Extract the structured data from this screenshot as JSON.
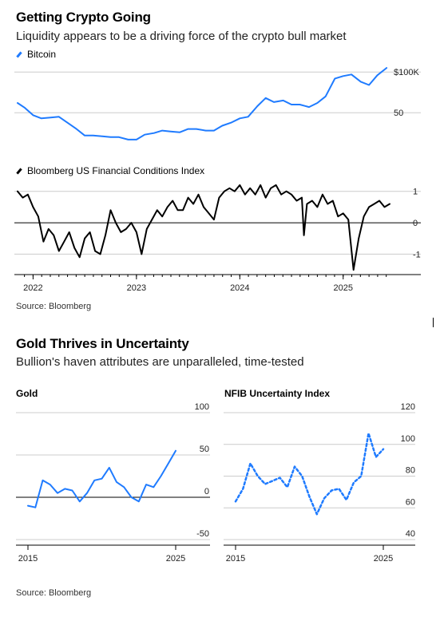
{
  "top": {
    "title": "Getting Crypto Going",
    "subtitle": "Liquidity appears to be a driving force of the crypto bull market",
    "source": "Source: Bloomberg"
  },
  "bottom": {
    "title": "Gold Thrives in Uncertainty",
    "subtitle": "Bullion's haven attributes are unparalleled, time-tested",
    "source": "Source: Bloomberg"
  },
  "colors": {
    "bitcoin": "#1f7bff",
    "fci": "#000000",
    "gold": "#1f7bff",
    "nfib": "#1f7bff",
    "grid": "#cccccc"
  },
  "chart_data": [
    {
      "type": "line",
      "legend": "Bitcoin",
      "y_tick_labels": [
        "$100K",
        "50"
      ],
      "y_ticks": [
        100,
        50
      ],
      "ylim": [
        10,
        110
      ],
      "xlim": [
        2021.85,
        2025.45
      ],
      "series": [
        {
          "name": "Bitcoin",
          "x": [
            2021.85,
            2021.92,
            2022.0,
            2022.08,
            2022.17,
            2022.25,
            2022.33,
            2022.42,
            2022.5,
            2022.58,
            2022.67,
            2022.75,
            2022.83,
            2022.92,
            2023.0,
            2023.08,
            2023.17,
            2023.25,
            2023.33,
            2023.42,
            2023.5,
            2023.58,
            2023.67,
            2023.75,
            2023.83,
            2023.92,
            2024.0,
            2024.08,
            2024.17,
            2024.25,
            2024.33,
            2024.42,
            2024.5,
            2024.58,
            2024.67,
            2024.75,
            2024.83,
            2024.92,
            2025.0,
            2025.08,
            2025.17,
            2025.25,
            2025.33,
            2025.42
          ],
          "y": [
            62,
            56,
            47,
            43,
            44,
            45,
            38,
            30,
            22,
            22,
            21,
            20,
            20,
            17,
            17,
            23,
            25,
            28,
            27,
            26,
            30,
            30,
            28,
            28,
            34,
            38,
            43,
            45,
            58,
            68,
            63,
            65,
            60,
            60,
            57,
            62,
            70,
            92,
            95,
            97,
            88,
            84,
            96,
            105
          ]
        }
      ]
    },
    {
      "type": "line",
      "legend": "Bloomberg US Financial Conditions Index",
      "y_tick_labels": [
        "1",
        "0",
        "-1"
      ],
      "y_ticks": [
        1,
        0,
        -1
      ],
      "ylim": [
        -1.6,
        1.4
      ],
      "xlim": [
        2021.85,
        2025.45
      ],
      "x_tick_labels": [
        "2022",
        "2023",
        "2024",
        "2025"
      ],
      "x_ticks": [
        2022,
        2023,
        2024,
        2025
      ],
      "series": [
        {
          "name": "Bloomberg US Financial Conditions Index",
          "x": [
            2021.85,
            2021.9,
            2021.95,
            2022.0,
            2022.05,
            2022.1,
            2022.15,
            2022.2,
            2022.25,
            2022.3,
            2022.35,
            2022.4,
            2022.45,
            2022.5,
            2022.55,
            2022.6,
            2022.65,
            2022.7,
            2022.75,
            2022.8,
            2022.85,
            2022.9,
            2022.95,
            2023.0,
            2023.05,
            2023.1,
            2023.15,
            2023.2,
            2023.25,
            2023.3,
            2023.35,
            2023.4,
            2023.45,
            2023.5,
            2023.55,
            2023.6,
            2023.65,
            2023.7,
            2023.75,
            2023.8,
            2023.85,
            2023.9,
            2023.95,
            2024.0,
            2024.05,
            2024.1,
            2024.15,
            2024.2,
            2024.25,
            2024.3,
            2024.35,
            2024.4,
            2024.45,
            2024.5,
            2024.55,
            2024.6,
            2024.62,
            2024.65,
            2024.7,
            2024.75,
            2024.8,
            2024.85,
            2024.9,
            2024.95,
            2025.0,
            2025.05,
            2025.1,
            2025.15,
            2025.2,
            2025.25,
            2025.3,
            2025.35,
            2025.4,
            2025.45
          ],
          "y": [
            1.0,
            0.8,
            0.9,
            0.5,
            0.2,
            -0.6,
            -0.2,
            -0.4,
            -0.9,
            -0.6,
            -0.3,
            -0.8,
            -1.1,
            -0.5,
            -0.3,
            -0.9,
            -1.0,
            -0.4,
            0.4,
            0.0,
            -0.3,
            -0.2,
            0.0,
            -0.3,
            -1.0,
            -0.2,
            0.1,
            0.4,
            0.2,
            0.5,
            0.7,
            0.4,
            0.4,
            0.8,
            0.6,
            0.9,
            0.5,
            0.3,
            0.1,
            0.8,
            1.0,
            1.1,
            1.0,
            1.2,
            0.9,
            1.1,
            0.9,
            1.2,
            0.8,
            1.1,
            1.2,
            0.9,
            1.0,
            0.9,
            0.7,
            0.8,
            -0.4,
            0.6,
            0.7,
            0.5,
            0.9,
            0.6,
            0.7,
            0.2,
            0.3,
            0.1,
            -1.5,
            -0.5,
            0.2,
            0.5,
            0.6,
            0.7,
            0.5,
            0.6
          ]
        }
      ]
    },
    {
      "type": "line",
      "title": "Gold",
      "y_tick_labels": [
        "100",
        "50",
        "0",
        "-50"
      ],
      "y_ticks": [
        100,
        50,
        0,
        -50
      ],
      "ylim": [
        -50,
        100
      ],
      "xlim": [
        2015,
        2025
      ],
      "x_tick_labels": [
        "2015",
        "2025"
      ],
      "x_ticks": [
        2015,
        2025
      ],
      "series": [
        {
          "name": "Gold",
          "x": [
            2015,
            2015.5,
            2016,
            2016.5,
            2017,
            2017.5,
            2018,
            2018.5,
            2019,
            2019.5,
            2020,
            2020.5,
            2021,
            2021.5,
            2022,
            2022.5,
            2023,
            2023.5,
            2024,
            2024.5,
            2025
          ],
          "y": [
            -10,
            -12,
            20,
            15,
            5,
            10,
            8,
            -5,
            5,
            20,
            22,
            35,
            18,
            12,
            0,
            -5,
            15,
            12,
            25,
            40,
            55
          ]
        }
      ]
    },
    {
      "type": "line",
      "title": "NFIB Uncertainty Index",
      "y_tick_labels": [
        "120",
        "100",
        "80",
        "60",
        "40"
      ],
      "y_ticks": [
        120,
        100,
        80,
        60,
        40
      ],
      "ylim": [
        40,
        120
      ],
      "xlim": [
        2015,
        2025
      ],
      "x_tick_labels": [
        "2015",
        "2025"
      ],
      "x_ticks": [
        2015,
        2025
      ],
      "series": [
        {
          "name": "NFIB Uncertainty Index",
          "x": [
            2015,
            2015.5,
            2016,
            2016.5,
            2017,
            2017.5,
            2018,
            2018.5,
            2019,
            2019.5,
            2020,
            2020.5,
            2021,
            2021.5,
            2022,
            2022.5,
            2023,
            2023.5,
            2024,
            2024.5,
            2025
          ],
          "y": [
            64,
            72,
            88,
            80,
            75,
            77,
            79,
            73,
            86,
            80,
            67,
            56,
            66,
            71,
            72,
            65,
            76,
            80,
            107,
            92,
            97
          ]
        }
      ]
    }
  ]
}
